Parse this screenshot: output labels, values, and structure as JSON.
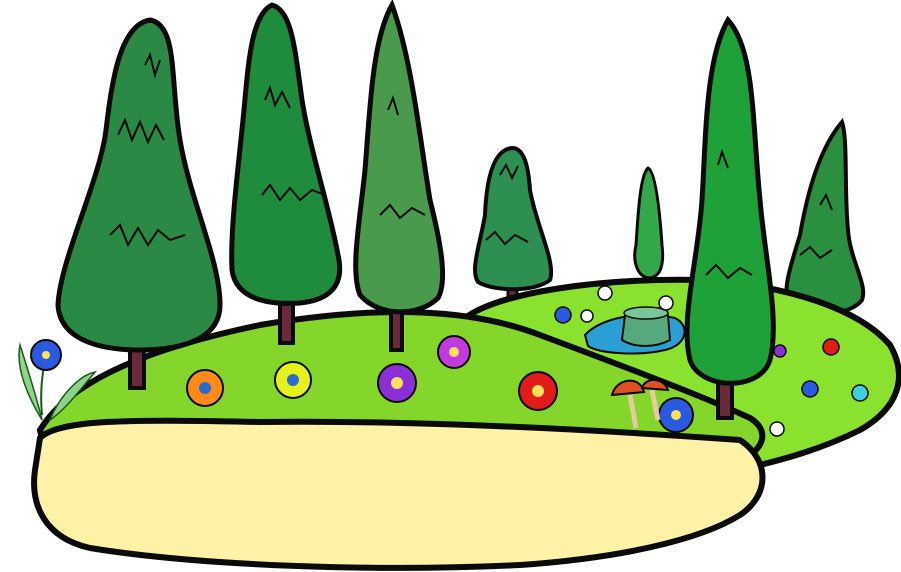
{
  "scene": {
    "background": "#ffffff",
    "outline": "#0a0a0a",
    "sand": "#fdf2a6",
    "grass_front": "#84d62a",
    "grass_back": "#8be22e",
    "pond": "#2a9fd3",
    "stump": "#56a87d",
    "tree_greens": [
      "#1f8b3c",
      "#2a8a45",
      "#4a9a4e",
      "#2e8f52",
      "#33a84a",
      "#1fa13a",
      "#2a9040"
    ],
    "trunk": "#6a2a3c",
    "flower_colors": [
      "#ff8a1a",
      "#e6f01a",
      "#8b2fd6",
      "#ffffff",
      "#e11a1a",
      "#2a5ae0",
      "#c03ae0",
      "#3ad0e0"
    ],
    "mushroom_cap": "#e05020"
  }
}
